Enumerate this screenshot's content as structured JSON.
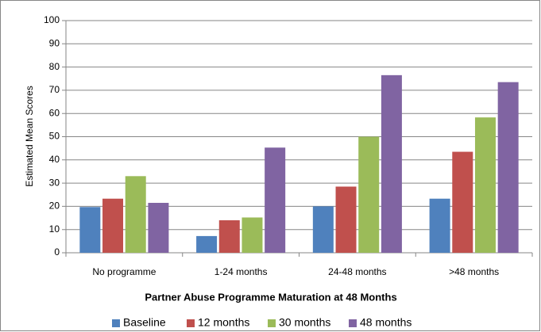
{
  "chart_data": {
    "type": "bar",
    "title": "Partner Abuse Programme Maturation at 48 Months",
    "y_label": "Estimated Mean Scores",
    "categories": [
      "No programme",
      "1-24 months",
      "24-48 months",
      ">48 months"
    ],
    "series": [
      {
        "name": "Baseline",
        "color": "#4f81bd",
        "values": [
          19.7,
          7.2,
          20,
          23.3
        ]
      },
      {
        "name": "12 months",
        "color": "#c0504d",
        "values": [
          23.3,
          14,
          28.5,
          43.5
        ]
      },
      {
        "name": "30 months",
        "color": "#9bbb59",
        "values": [
          33,
          15.2,
          50,
          58.3
        ]
      },
      {
        "name": "48 months",
        "color": "#8064a2",
        "values": [
          21.5,
          45.3,
          76.5,
          73.5
        ]
      }
    ],
    "ylim": [
      0,
      100
    ],
    "yticks": [
      0,
      10,
      20,
      30,
      40,
      50,
      60,
      70,
      80,
      90,
      100
    ],
    "grid": true,
    "legend": "bottom"
  }
}
